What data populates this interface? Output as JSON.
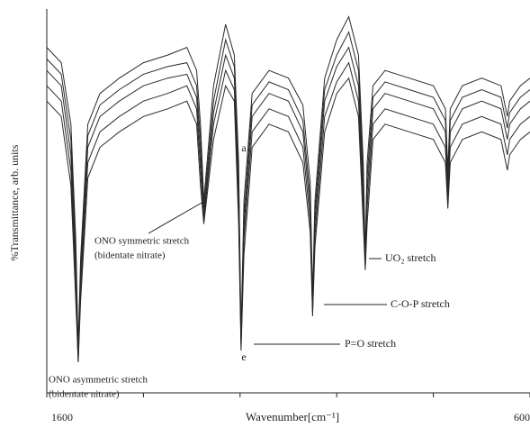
{
  "chart_data": {
    "type": "line",
    "xlabel": "Wavenumber[cm⁻¹]",
    "ylabel": "%Transmittance, arb. units",
    "xlim": [
      1600,
      600
    ],
    "ylim": [
      0,
      100
    ],
    "xticks": [
      1600,
      {
        "value": 1400,
        "label": null
      },
      {
        "value": 1200,
        "label": null
      },
      {
        "value": 1000,
        "label": null
      },
      {
        "value": 800,
        "label": null
      },
      600
    ],
    "x": [
      1600,
      1570,
      1550,
      1540,
      1535,
      1530,
      1515,
      1490,
      1450,
      1400,
      1350,
      1310,
      1290,
      1282,
      1275,
      1255,
      1230,
      1212,
      1203,
      1198,
      1192,
      1175,
      1140,
      1100,
      1070,
      1055,
      1050,
      1045,
      1025,
      1000,
      975,
      955,
      945,
      941,
      937,
      925,
      900,
      850,
      800,
      775,
      770,
      765,
      740,
      700,
      660,
      647,
      642,
      620,
      600
    ],
    "series": [
      {
        "color": "#2a2a2a",
        "values": [
          90,
          86,
          70,
          40,
          12,
          35,
          70,
          78,
          82,
          86,
          88,
          90,
          84,
          70,
          50,
          80,
          96,
          88,
          60,
          15,
          50,
          78,
          84,
          82,
          75,
          55,
          25,
          50,
          82,
          92,
          98,
          88,
          60,
          36,
          60,
          80,
          84,
          82,
          80,
          74,
          58,
          74,
          80,
          82,
          80,
          72,
          76,
          80,
          82
        ]
      },
      {
        "color": "#2a2a2a",
        "values": [
          87,
          83,
          66,
          36,
          10,
          32,
          67,
          75,
          79,
          83,
          85,
          86,
          80,
          66,
          48,
          76,
          92,
          85,
          56,
          14,
          46,
          75,
          81,
          79,
          71,
          51,
          23,
          47,
          79,
          88,
          94,
          84,
          56,
          34,
          56,
          77,
          81,
          79,
          77,
          71,
          55,
          71,
          77,
          79,
          77,
          69,
          73,
          77,
          79
        ]
      },
      {
        "color": "#2a2a2a",
        "values": [
          84,
          80,
          62,
          32,
          9,
          30,
          64,
          72,
          76,
          80,
          82,
          83,
          77,
          62,
          46,
          73,
          88,
          82,
          52,
          13,
          43,
          72,
          78,
          76,
          68,
          48,
          22,
          44,
          76,
          85,
          90,
          80,
          52,
          33,
          52,
          74,
          78,
          76,
          74,
          68,
          52,
          68,
          74,
          76,
          74,
          66,
          70,
          74,
          76
        ]
      },
      {
        "color": "#2a2a2a",
        "values": [
          80,
          76,
          58,
          28,
          8,
          27,
          60,
          68,
          72,
          76,
          78,
          80,
          74,
          58,
          45,
          70,
          84,
          79,
          48,
          12,
          40,
          68,
          74,
          72,
          64,
          45,
          21,
          41,
          72,
          81,
          86,
          76,
          48,
          33,
          48,
          70,
          74,
          72,
          70,
          64,
          50,
          64,
          70,
          72,
          70,
          62,
          66,
          70,
          72
        ]
      },
      {
        "color": "#2a2a2a",
        "values": [
          76,
          72,
          54,
          24,
          8,
          24,
          56,
          64,
          68,
          72,
          74,
          76,
          70,
          54,
          44,
          66,
          80,
          76,
          44,
          11,
          36,
          64,
          70,
          68,
          60,
          42,
          20,
          38,
          68,
          78,
          82,
          72,
          44,
          32,
          44,
          66,
          70,
          68,
          66,
          60,
          48,
          60,
          66,
          68,
          66,
          58,
          62,
          66,
          68
        ]
      }
    ],
    "annotations": [
      "ONO symmetric stretch",
      "(bidentate nitrate)",
      "ONO asymmetric stretch",
      "(bidentate nitrate)",
      "P=O stretch",
      "C-O-P stretch",
      "UO₂ stretch",
      "a",
      "e"
    ]
  }
}
